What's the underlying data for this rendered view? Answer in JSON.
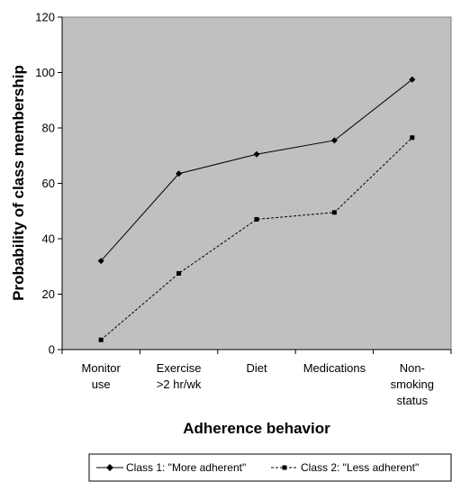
{
  "chart_data": {
    "type": "line",
    "categories": [
      [
        "Monitor",
        "use"
      ],
      [
        "Exercise",
        ">2 hr/wk"
      ],
      [
        "Diet"
      ],
      [
        "Medications"
      ],
      [
        "Non-",
        "smoking",
        "status"
      ]
    ],
    "series": [
      {
        "name": "Class 1: \"More adherent\"",
        "values": [
          32,
          63.5,
          70.5,
          75.5,
          97.5
        ],
        "marker": "diamond",
        "line": "solid"
      },
      {
        "name": "Class 2: \"Less adherent\"",
        "values": [
          3.5,
          27.5,
          47,
          49.5,
          76.5
        ],
        "marker": "square",
        "line": "dashed"
      }
    ],
    "xlabel": "Adherence behavior",
    "ylabel": "Probability of class membership",
    "ylim": [
      0,
      120
    ],
    "yticks": [
      0,
      20,
      40,
      60,
      80,
      100,
      120
    ],
    "grid": false,
    "legend_position": "bottom",
    "plot_background": "#c0c0c0",
    "line_color": "#000000"
  }
}
